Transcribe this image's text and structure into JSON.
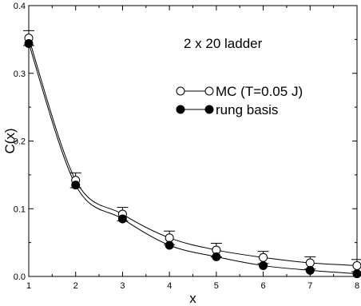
{
  "chart_data": {
    "type": "line",
    "xlabel": "x",
    "ylabel": "C(x)",
    "xlim": [
      1,
      8
    ],
    "ylim": [
      0,
      0.4
    ],
    "x_ticks": [
      "1",
      "2",
      "3",
      "4",
      "5",
      "6",
      "7",
      "8"
    ],
    "y_ticks": [
      "0.0",
      "0.1",
      "0.2",
      "0.3",
      "0.4"
    ],
    "annotation": "2 x 20 ladder",
    "legend_position": "right",
    "grid": false,
    "series": [
      {
        "name": "MC (T=0.05 J)",
        "marker": "open-circle",
        "x": [
          1,
          2,
          3,
          4,
          5,
          6,
          7,
          8
        ],
        "y": [
          0.352,
          0.142,
          0.092,
          0.057,
          0.039,
          0.028,
          0.02,
          0.016
        ],
        "error": [
          0.011,
          0.011,
          0.01,
          0.01,
          0.01,
          0.009,
          0.009,
          0.009
        ]
      },
      {
        "name": "rung basis",
        "marker": "filled-circle",
        "x": [
          1,
          2,
          3,
          4,
          5,
          6,
          7,
          8
        ],
        "y": [
          0.344,
          0.135,
          0.085,
          0.046,
          0.029,
          0.016,
          0.009,
          0.004
        ]
      }
    ]
  }
}
